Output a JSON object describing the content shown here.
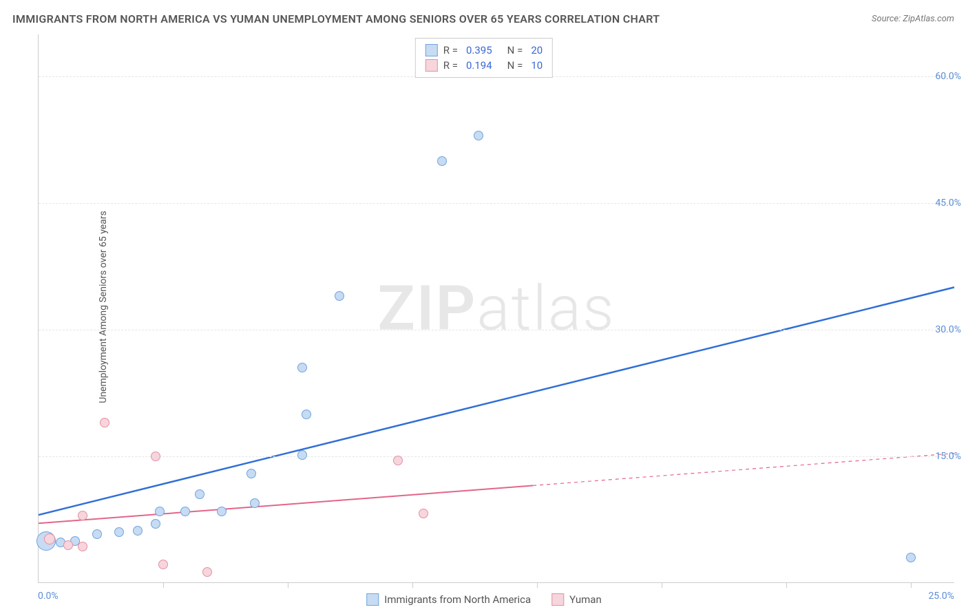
{
  "title": "IMMIGRANTS FROM NORTH AMERICA VS YUMAN UNEMPLOYMENT AMONG SENIORS OVER 65 YEARS CORRELATION CHART",
  "source": "Source: ZipAtlas.com",
  "y_axis_label": "Unemployment Among Seniors over 65 years",
  "watermark_a": "ZIP",
  "watermark_b": "atlas",
  "plot": {
    "xlim": [
      0,
      25
    ],
    "ylim": [
      0,
      65
    ],
    "x_ticks": [
      0,
      25
    ],
    "x_tick_labels": [
      "0.0%",
      "25.0%"
    ],
    "x_minor_ticks": [
      3.4,
      6.8,
      10.2,
      13.6,
      17.0,
      20.4,
      23.8
    ],
    "y_ticks": [
      15,
      30,
      45,
      60
    ],
    "y_tick_labels": [
      "15.0%",
      "30.0%",
      "45.0%",
      "60.0%"
    ],
    "y_gridlines": [
      15,
      30,
      45,
      60
    ],
    "background_color": "#ffffff",
    "grid_color": "#e5e5e5"
  },
  "series": [
    {
      "name": "Immigrants from North America",
      "color_fill": "#c7dbf2",
      "color_stroke": "#6fa3e0",
      "trend_color": "#2f6fd6",
      "trend_width": 2.5,
      "trend_dash_after_x": null,
      "R": "0.395",
      "N": "20",
      "trend": {
        "x1": 0,
        "y1": 8.0,
        "x2": 25,
        "y2": 35.0
      },
      "points": [
        {
          "x": 0.2,
          "y": 5.0,
          "r": 14
        },
        {
          "x": 0.6,
          "y": 4.8,
          "r": 7
        },
        {
          "x": 1.0,
          "y": 5.0,
          "r": 7
        },
        {
          "x": 1.6,
          "y": 5.8,
          "r": 7
        },
        {
          "x": 2.2,
          "y": 6.0,
          "r": 7
        },
        {
          "x": 2.7,
          "y": 6.2,
          "r": 7
        },
        {
          "x": 3.2,
          "y": 7.0,
          "r": 7
        },
        {
          "x": 3.3,
          "y": 8.5,
          "r": 7
        },
        {
          "x": 4.0,
          "y": 8.5,
          "r": 7
        },
        {
          "x": 4.4,
          "y": 10.5,
          "r": 7
        },
        {
          "x": 5.0,
          "y": 8.5,
          "r": 7
        },
        {
          "x": 5.8,
          "y": 13.0,
          "r": 7
        },
        {
          "x": 5.9,
          "y": 9.5,
          "r": 7
        },
        {
          "x": 7.2,
          "y": 15.2,
          "r": 7
        },
        {
          "x": 7.3,
          "y": 20.0,
          "r": 7
        },
        {
          "x": 7.2,
          "y": 25.5,
          "r": 7
        },
        {
          "x": 8.2,
          "y": 34.0,
          "r": 7
        },
        {
          "x": 11.0,
          "y": 50.0,
          "r": 7
        },
        {
          "x": 12.0,
          "y": 53.0,
          "r": 7
        },
        {
          "x": 23.8,
          "y": 3.0,
          "r": 7
        }
      ]
    },
    {
      "name": "Yuman",
      "color_fill": "#f7d5dd",
      "color_stroke": "#e48fa3",
      "trend_color": "#e36488",
      "trend_width": 2,
      "trend_dash_after_x": 13.5,
      "R": "0.194",
      "N": "10",
      "trend": {
        "x1": 0,
        "y1": 7.0,
        "x2": 25,
        "y2": 15.3
      },
      "points": [
        {
          "x": 0.3,
          "y": 5.2,
          "r": 8
        },
        {
          "x": 0.8,
          "y": 4.5,
          "r": 7
        },
        {
          "x": 1.2,
          "y": 4.3,
          "r": 7
        },
        {
          "x": 1.2,
          "y": 8.0,
          "r": 7
        },
        {
          "x": 1.8,
          "y": 19.0,
          "r": 7
        },
        {
          "x": 3.2,
          "y": 15.0,
          "r": 7
        },
        {
          "x": 3.4,
          "y": 2.2,
          "r": 7
        },
        {
          "x": 4.6,
          "y": 1.3,
          "r": 7
        },
        {
          "x": 9.8,
          "y": 14.5,
          "r": 7
        },
        {
          "x": 10.5,
          "y": 8.2,
          "r": 7
        }
      ]
    }
  ],
  "legend_bottom": [
    {
      "label": "Immigrants from North America",
      "fill": "#c7dbf2",
      "stroke": "#6fa3e0"
    },
    {
      "label": "Yuman",
      "fill": "#f7d5dd",
      "stroke": "#e48fa3"
    }
  ]
}
